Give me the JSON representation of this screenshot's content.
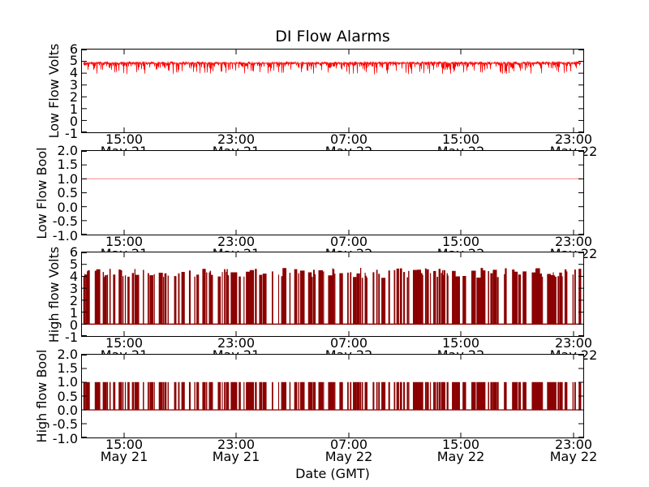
{
  "title": "DI Flow Alarms",
  "xlabel": "Date (GMT)",
  "colors": {
    "axes": "#000000",
    "background": "#ffffff",
    "low_flow_volts": "#ff0000",
    "low_flow_bool": "#ffa6a6",
    "high_flow": "#8b0000"
  },
  "x_axis": {
    "tick_times": [
      "15:00",
      "23:00",
      "07:00",
      "15:00",
      "23:00"
    ],
    "tick_dates": [
      "May 21",
      "May 21",
      "May 22",
      "May 22",
      "May 22"
    ],
    "x_range_estimate": [
      "May 21 12:00",
      "May 22 23:45"
    ],
    "grid": "off",
    "legend": "none"
  },
  "chart_data": [
    {
      "type": "line",
      "ylabel": "Low Flow Volts",
      "ylim": [
        -1,
        6
      ],
      "yticks": [
        "6",
        "5",
        "4",
        "3",
        "2",
        "1",
        "0",
        "-1"
      ],
      "color": "#ff0000",
      "signal": {
        "kind": "noise-band",
        "seed": 11,
        "mean": 4.88,
        "top": 5.05,
        "spike_min": 3.9,
        "description": "noisy analog low-flow sensor voltage hovering just under 5 V with dense downward spikes to ~4 V"
      }
    },
    {
      "type": "line",
      "ylabel": "Low Flow Bool",
      "ylim": [
        -1,
        2
      ],
      "yticks": [
        "2.0",
        "1.5",
        "1.0",
        "0.5",
        "0.0",
        "-0.5",
        "-1.0"
      ],
      "color": "#ffa6a6",
      "signal": {
        "kind": "constant",
        "value": 1.0,
        "description": "low-flow alarm boolean, constant 1.0 (true) across the whole window"
      }
    },
    {
      "type": "line",
      "ylabel": "High flow Volts",
      "ylim": [
        -1,
        6
      ],
      "yticks": [
        "6",
        "5",
        "4",
        "3",
        "2",
        "1",
        "0",
        "-1"
      ],
      "color": "#8b0000",
      "signal": {
        "kind": "random-square",
        "seed": 29,
        "low": 0.0,
        "high_min": 3.85,
        "high_max": 4.7,
        "description": "high-flow sensor voltage toggling rapidly between 0 V and ~4-4.7 V in irregular bursts"
      }
    },
    {
      "type": "line",
      "ylabel": "High flow Bool",
      "ylim": [
        -1,
        2
      ],
      "yticks": [
        "2.0",
        "1.5",
        "1.0",
        "0.5",
        "0.0",
        "-0.5",
        "-1.0"
      ],
      "color": "#8b0000",
      "signal": {
        "kind": "random-square",
        "seed": 29,
        "low": 0.0,
        "high": 1.0,
        "description": "high-flow alarm boolean toggling between 0 and 1 in the same burst pattern as the voltage"
      }
    }
  ]
}
